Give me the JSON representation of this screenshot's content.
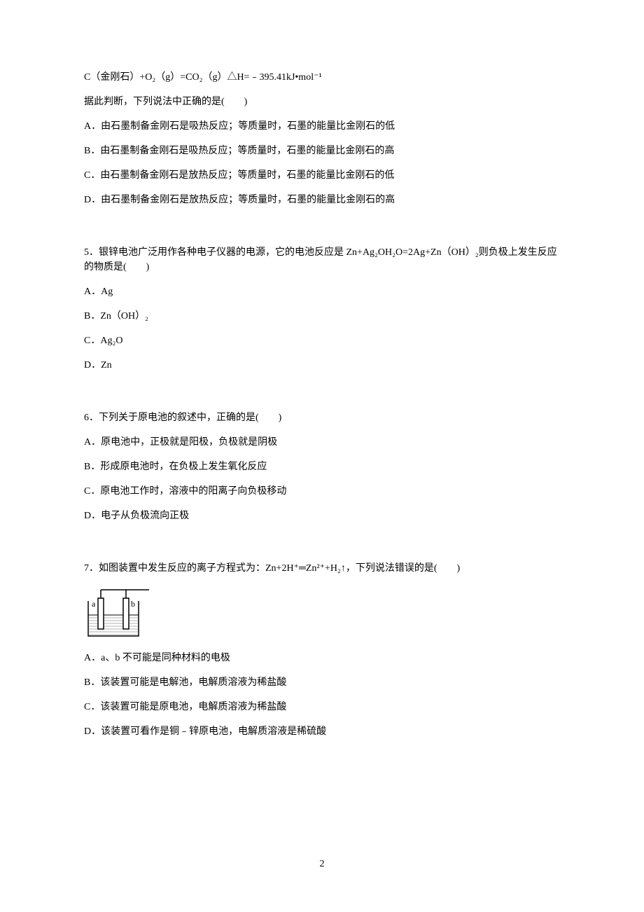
{
  "page": {
    "number": "2",
    "background_color": "#ffffff",
    "text_color": "#000000",
    "font_family_primary": "SimSun",
    "base_font_size": 14,
    "line_height": 1.5
  },
  "intro": {
    "equation": "C（金刚石）+O₂（g）=CO₂（g）△H=﹣395.41kJ•mol⁻¹",
    "prompt": "据此判断，下列说法中正确的是(　　)"
  },
  "q_intro_options": {
    "a": "A．由石墨制备金刚石是吸热反应；等质量时，石墨的能量比金刚石的低",
    "b": "B．由石墨制备金刚石是吸热反应；等质量时，石墨的能量比金刚石的高",
    "c": "C．由石墨制备金刚石是放热反应；等质量时，石墨的能量比金刚石的低",
    "d": "D．由石墨制备金刚石是放热反应；等质量时，石墨的能量比金刚石的高"
  },
  "q5": {
    "stem": "5．银锌电池广泛用作各种电子仪器的电源，它的电池反应是 Zn+Ag₂OH₂O=2Ag+Zn（OH）₂则负极上发生反应的物质是(　　)",
    "a": "A．Ag",
    "b": "B．Zn（OH）₂",
    "c": "C．Ag₂O",
    "d": "D．Zn"
  },
  "q6": {
    "stem": "6．下列关于原电池的叙述中，正确的是(　　)",
    "a": "A．原电池中，正极就是阳极，负极就是阴极",
    "b": "B．形成原电池时，在负极上发生氧化反应",
    "c": "C．原电池工作时，溶液中的阳离子向负极移动",
    "d": "D．电子从负极流向正极"
  },
  "q7": {
    "stem": "7．如图装置中发生反应的离子方程式为：Zn+2H⁺═Zn²⁺+H₂↑，下列说法错误的是(　　)",
    "a": "A．a、b 不可能是同种材料的电极",
    "b": "B．该装置可能是电解池，电解质溶液为稀盐酸",
    "c": "C．该装置可能是原电池，电解质溶液为稀盐酸",
    "d": "D．该装置可看作是铜﹣锌原电池，电解质溶液是稀硫酸"
  },
  "diagram": {
    "width": 95,
    "height": 75,
    "stroke_color": "#000000",
    "stroke_width": 1.5,
    "hatch_color": "#666666",
    "label_a": "a",
    "label_b": "b",
    "font_size": 12
  }
}
